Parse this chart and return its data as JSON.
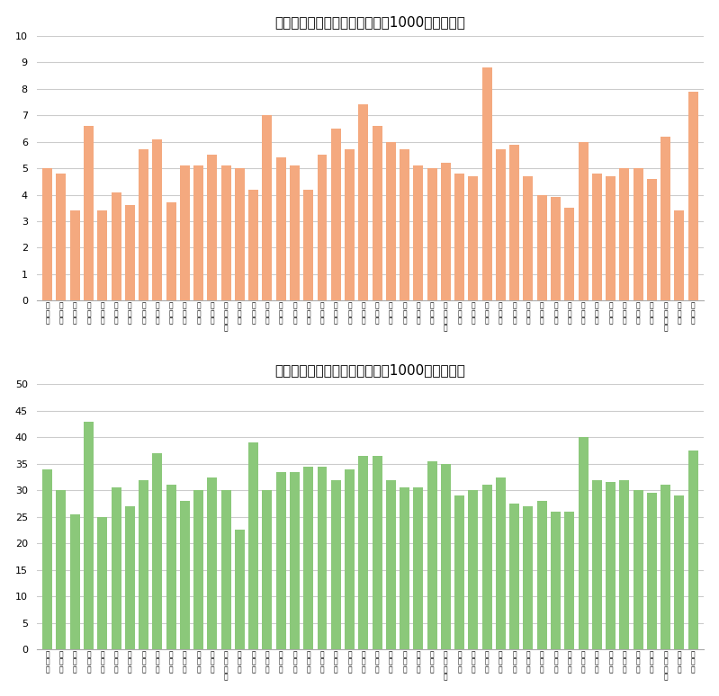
{
  "elementary_title": "小学校における不登校の件数（1000人あたり）",
  "middle_title": "中学校における不登校の件数（1000人あたり）",
  "elementary_values": [
    5.0,
    4.8,
    3.4,
    6.6,
    3.4,
    4.1,
    3.6,
    5.7,
    6.1,
    3.7,
    5.1,
    5.1,
    5.5,
    5.1,
    5.0,
    4.2,
    7.0,
    5.4,
    5.1,
    4.2,
    5.5,
    6.5,
    5.7,
    7.4,
    6.6,
    6.0,
    5.7,
    5.1,
    5.0,
    5.2,
    4.8,
    4.7,
    8.8,
    5.7,
    5.9,
    4.7,
    4.0,
    3.9,
    3.5,
    6.0,
    4.8,
    4.7,
    5.0,
    5.0,
    4.6,
    6.2,
    3.4,
    7.9
  ],
  "middle_values": [
    34.0,
    30.0,
    25.5,
    43.0,
    25.0,
    30.5,
    27.0,
    32.0,
    37.0,
    31.0,
    28.0,
    30.0,
    32.5,
    30.0,
    22.5,
    39.0,
    30.0,
    33.5,
    33.5,
    34.5,
    34.5,
    32.0,
    34.0,
    36.5,
    36.5,
    32.0,
    30.5,
    30.5,
    35.5,
    35.0,
    29.0,
    30.0,
    31.0,
    32.5,
    27.5,
    27.0,
    28.0,
    26.0,
    26.0,
    40.0,
    32.0,
    31.5,
    32.0,
    30.0,
    29.5,
    31.0,
    29.0,
    37.5
  ],
  "bar_color_elementary": "#F4A97F",
  "bar_color_middle": "#8BC87A",
  "bg_color": "#FFFFFF",
  "grid_color": "#CCCCCC",
  "elementary_ylim": [
    0,
    10
  ],
  "elementary_yticks": [
    0,
    1,
    2,
    3,
    4,
    5,
    6,
    7,
    8,
    9,
    10
  ],
  "middle_ylim": [
    0,
    50
  ],
  "middle_yticks": [
    0,
    5,
    10,
    15,
    20,
    25,
    30,
    35,
    40,
    45,
    50
  ]
}
